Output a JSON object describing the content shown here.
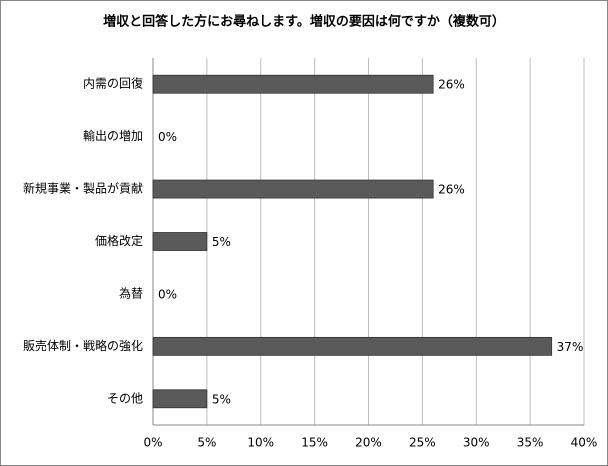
{
  "chart_data": {
    "type": "bar",
    "orientation": "horizontal",
    "title": "増収と回答した方にお尋ねします。増収の要因は何ですか（複数可）",
    "categories": [
      "内需の回復",
      "輸出の増加",
      "新規事業・製品が貢献",
      "価格改定",
      "為替",
      "販売体制・戦略の強化",
      "その他"
    ],
    "values": [
      26,
      0,
      26,
      5,
      0,
      37,
      5
    ],
    "value_labels": [
      "26%",
      "0%",
      "26%",
      "5%",
      "0%",
      "37%",
      "5%"
    ],
    "color": "#5a5a5a",
    "xlim": [
      0,
      40
    ],
    "xticks": [
      {
        "value": 0,
        "label": "0%"
      },
      {
        "value": 5,
        "label": "5%"
      },
      {
        "value": 10,
        "label": "10%"
      },
      {
        "value": 15,
        "label": "15%"
      },
      {
        "value": 20,
        "label": "20%"
      },
      {
        "value": 25,
        "label": "25%"
      },
      {
        "value": 30,
        "label": "30%"
      },
      {
        "value": 35,
        "label": "35%"
      },
      {
        "value": 40,
        "label": "40%"
      }
    ],
    "grid": true
  }
}
